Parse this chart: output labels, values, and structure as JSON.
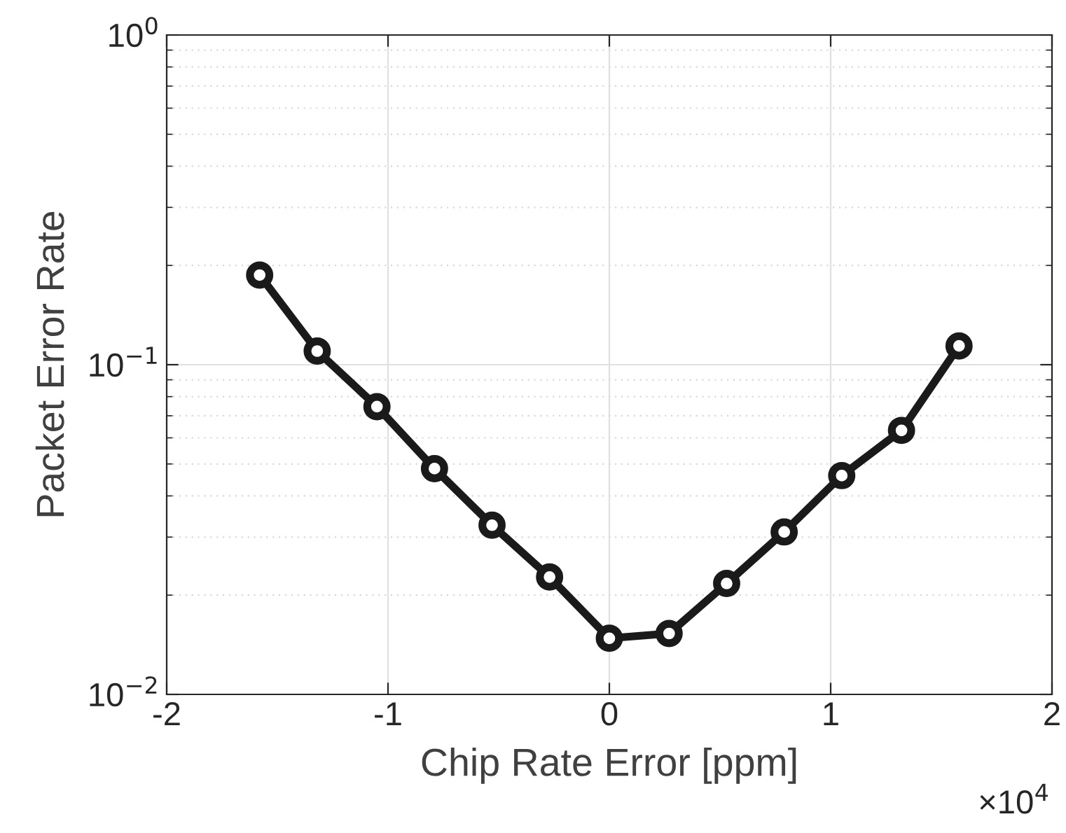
{
  "chart_data": {
    "type": "line",
    "xlabel": "Chip Rate Error [ppm]",
    "ylabel": "Packet Error Rate",
    "log": "y",
    "grid": true,
    "marker": "circle",
    "line_style": "solid",
    "x": [
      -1.58,
      -1.32,
      -1.05,
      -0.79,
      -0.53,
      -0.27,
      0,
      0.27,
      0.53,
      0.79,
      1.05,
      1.32,
      1.58
    ],
    "series": [
      {
        "color": "#1a1a1a",
        "values": [
          0.187,
          0.11,
          0.0746,
          0.0484,
          0.0326,
          0.0227,
          0.0148,
          0.0153,
          0.0217,
          0.0311,
          0.0461,
          0.0632,
          0.114
        ]
      }
    ],
    "xlim": [
      -2,
      2
    ],
    "xticks": [
      -2,
      -1,
      0,
      1,
      2
    ],
    "ylim": [
      0.01,
      1
    ],
    "yticks": [
      {
        "value": 0.01,
        "label": "10$^{−2}$"
      },
      {
        "value": 0.1,
        "label": "10$^{−1}$"
      },
      {
        "value": 1,
        "label": "10$^{0}$"
      }
    ],
    "annotations": [
      "×10$^{4}$"
    ]
  }
}
